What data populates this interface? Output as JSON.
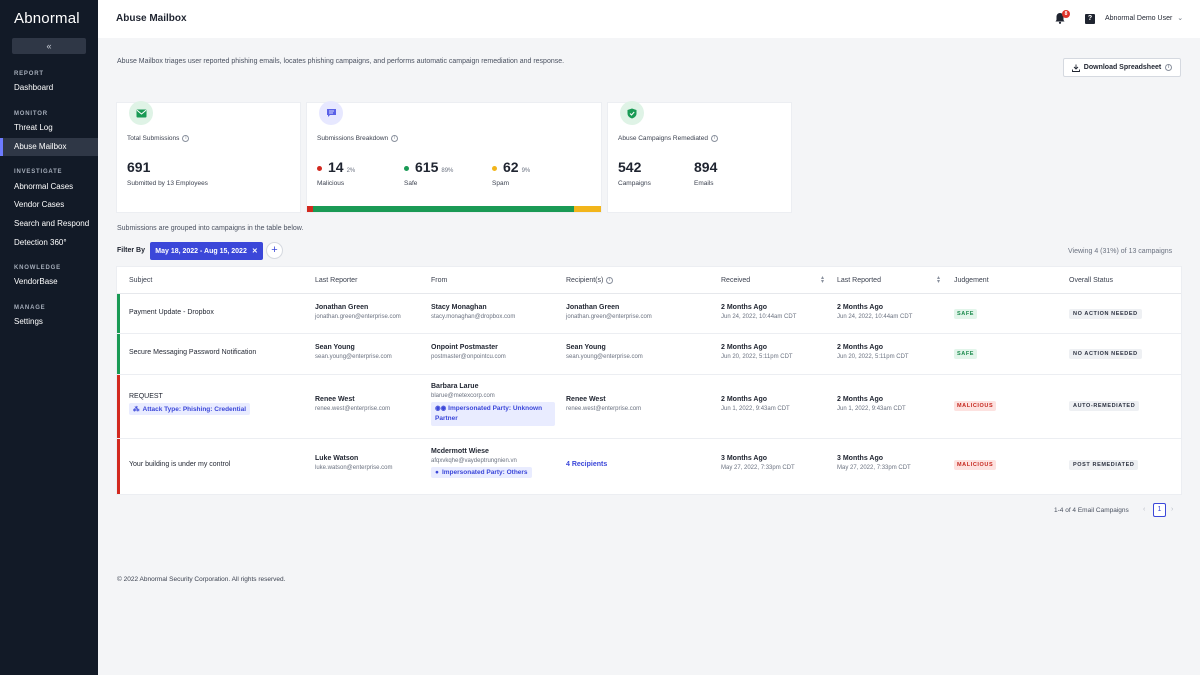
{
  "app": {
    "logo": "Abnormal",
    "collapse_icon": "«"
  },
  "sidebar": {
    "sections": [
      {
        "label": "REPORT",
        "items": [
          "Dashboard"
        ]
      },
      {
        "label": "MONITOR",
        "items": [
          "Threat Log",
          "Abuse Mailbox"
        ]
      },
      {
        "label": "INVESTIGATE",
        "items": [
          "Abnormal Cases",
          "Vendor Cases",
          "Search and Respond",
          "Detection 360°"
        ]
      },
      {
        "label": "KNOWLEDGE",
        "items": [
          "VendorBase"
        ]
      },
      {
        "label": "MANAGE",
        "items": [
          "Settings"
        ]
      }
    ],
    "active_item": "Abuse Mailbox"
  },
  "header": {
    "title": "Abuse Mailbox",
    "notification_count": "8",
    "help_icon": "?",
    "user": "Abnormal Demo User"
  },
  "intro": "Abuse Mailbox triages user reported phishing emails, locates phishing campaigns, and performs automatic campaign remediation and response.",
  "download_button": "Download Spreadsheet",
  "cards": {
    "total": {
      "label": "Total Submissions",
      "value": "691",
      "sub": "Submitted by 13 Employees"
    },
    "breakdown": {
      "label": "Submissions Breakdown",
      "malicious": {
        "value": "14",
        "pct": "2%",
        "label": "Malicious"
      },
      "safe": {
        "value": "615",
        "pct": "89%",
        "label": "Safe"
      },
      "spam": {
        "value": "62",
        "pct": "9%",
        "label": "Spam"
      }
    },
    "remediated": {
      "label": "Abuse Campaigns Remediated",
      "campaigns": {
        "value": "542",
        "label": "Campaigns"
      },
      "emails": {
        "value": "894",
        "label": "Emails"
      }
    }
  },
  "note": "Submissions are grouped into campaigns in the table below.",
  "filter": {
    "label": "Filter By",
    "chip": "May 18, 2022 - Aug 15, 2022",
    "chip_close": "✕",
    "add": "+"
  },
  "viewing": "Viewing 4 (31%) of 13 campaigns",
  "table": {
    "headers": [
      "Subject",
      "Last Reporter",
      "From",
      "Recipient(s)",
      "Received",
      "Last Reported",
      "Judgement",
      "Overall Status"
    ],
    "rows": [
      {
        "subject": "Payment Update - Dropbox",
        "reporter": "Jonathan Green",
        "reporter_email": "jonathan.green@enterprise.com",
        "from": "Stacy Monaghan",
        "from_email": "stacy.monaghan@dropbox.com",
        "recipient": "Jonathan Green",
        "recipient_email": "jonathan.green@enterprise.com",
        "received": "2 Months Ago",
        "received_date": "Jun 24, 2022, 10:44am CDT",
        "last_reported": "2 Months Ago",
        "last_reported_date": "Jun 24, 2022, 10:44am CDT",
        "judgement": "SAFE",
        "status": "NO ACTION NEEDED"
      },
      {
        "subject": "Secure Messaging Password Notification",
        "reporter": "Sean Young",
        "reporter_email": "sean.young@enterprise.com",
        "from": "Onpoint Postmaster",
        "from_email": "postmaster@onpointcu.com",
        "recipient": "Sean Young",
        "recipient_email": "sean.young@enterprise.com",
        "received": "2 Months Ago",
        "received_date": "Jun 20, 2022, 5:11pm CDT",
        "last_reported": "2 Months Ago",
        "last_reported_date": "Jun 20, 2022, 5:11pm CDT",
        "judgement": "SAFE",
        "status": "NO ACTION NEEDED"
      },
      {
        "subject": "REQUEST",
        "subject_tag": "Attack Type: Phishing: Credential",
        "reporter": "Renee West",
        "reporter_email": "renee.west@enterprise.com",
        "from": "Barbara Larue",
        "from_email": "blarue@metexcorp.com",
        "from_tag": "Impersonated Party: Unknown Partner",
        "recipient": "Renee West",
        "recipient_email": "renee.west@enterprise.com",
        "received": "2 Months Ago",
        "received_date": "Jun 1, 2022, 9:43am CDT",
        "last_reported": "2 Months Ago",
        "last_reported_date": "Jun 1, 2022, 9:43am CDT",
        "judgement": "MALICIOUS",
        "status": "AUTO-REMEDIATED"
      },
      {
        "subject": "Your building is under my control",
        "reporter": "Luke Watson",
        "reporter_email": "luke.watson@enterprise.com",
        "from": "Mcdermott Wiese",
        "from_email": "afqxvkqhe@vaydeptrungnien.vn",
        "from_tag": "Impersonated Party: Others",
        "recipient_link": "4 Recipients",
        "received": "3 Months Ago",
        "received_date": "May 27, 2022, 7:33pm CDT",
        "last_reported": "3 Months Ago",
        "last_reported_date": "May 27, 2022, 7:33pm CDT",
        "judgement": "MALICIOUS",
        "status": "POST REMEDIATED"
      }
    ]
  },
  "pagination": {
    "info": "1-4 of 4 Email Campaigns",
    "page": "1",
    "prev": "‹",
    "next": "›"
  },
  "footer": "© 2022 Abnormal Security Corporation. All rights reserved.",
  "colors": {
    "malicious": "#d2291f",
    "safe": "#1a9a55",
    "spam": "#f2b51b",
    "accent": "#3b47d9",
    "sidebar_bg": "#121a27"
  }
}
